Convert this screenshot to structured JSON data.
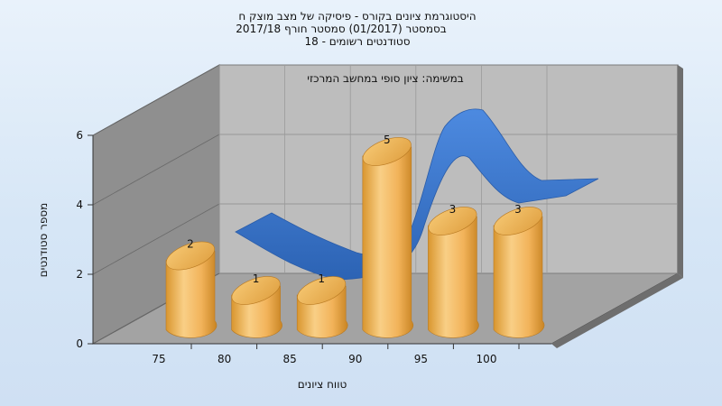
{
  "chart_data": {
    "type": "bar",
    "title_lines": [
      "היסטוגרמת ציונים בקורס - פיסיקה של מצב מוצק ח",
      "בסמסטר  (01/2017)  סמסטר חורף 2017/18",
      "סטודנטים רשומים - 18"
    ],
    "inner_title": "במשימה: ציון סופי במחשב המרכזי",
    "xlabel": "טווח ציונים",
    "ylabel": "מספר סטודנטים",
    "x_ticks": [
      "75",
      "80",
      "85",
      "90",
      "95",
      "100"
    ],
    "y_ticks": [
      "0",
      "2",
      "4",
      "6"
    ],
    "ylim": [
      0,
      6
    ],
    "bars": [
      {
        "x": 75,
        "value": 2,
        "label": "2"
      },
      {
        "x": 80,
        "value": 1,
        "label": "1"
      },
      {
        "x": 85,
        "value": 1,
        "label": "1"
      },
      {
        "x": 90,
        "value": 5,
        "label": "5"
      },
      {
        "x": 95,
        "value": 3,
        "label": "3"
      },
      {
        "x": 100,
        "value": 3,
        "label": "3"
      }
    ],
    "series_colors": {
      "bars": "#f2b35a",
      "curve": "#3a76c8"
    }
  }
}
